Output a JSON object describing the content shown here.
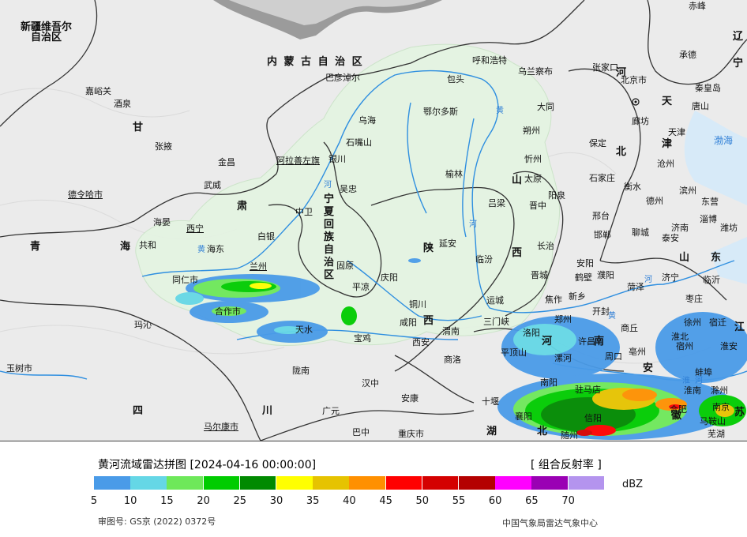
{
  "map": {
    "regions": [
      {
        "label": "新疆维吾尔\n自治区",
        "style": "prov"
      },
      {
        "label": "内 蒙 古 自 治 区",
        "style": "big"
      },
      {
        "label": "甘",
        "style": "big"
      },
      {
        "label": "肃",
        "style": "big"
      },
      {
        "label": "青",
        "style": "big"
      },
      {
        "label": "海",
        "style": "big"
      },
      {
        "label": "宁",
        "style": "big"
      },
      {
        "label": "夏",
        "style": "big"
      },
      {
        "label": "回",
        "style": "big"
      },
      {
        "label": "族",
        "style": "big"
      },
      {
        "label": "自",
        "style": "big"
      },
      {
        "label": "治",
        "style": "big"
      },
      {
        "label": "区",
        "style": "big"
      },
      {
        "label": "陕",
        "style": "big"
      },
      {
        "label": "西",
        "style": "big"
      },
      {
        "label": "山",
        "style": "big"
      },
      {
        "label": "西",
        "style": "big"
      },
      {
        "label": "河",
        "style": "big"
      },
      {
        "label": "北",
        "style": "big"
      },
      {
        "label": "河",
        "style": "big"
      },
      {
        "label": "南",
        "style": "big"
      },
      {
        "label": "山",
        "style": "big"
      },
      {
        "label": "东",
        "style": "big"
      },
      {
        "label": "四",
        "style": "big"
      },
      {
        "label": "川",
        "style": "big"
      },
      {
        "label": "湖",
        "style": "big"
      },
      {
        "label": "北",
        "style": "big"
      },
      {
        "label": "安",
        "style": "big"
      },
      {
        "label": "徽",
        "style": "big"
      },
      {
        "label": "江",
        "style": "big"
      },
      {
        "label": "苏",
        "style": "big"
      },
      {
        "label": "天",
        "style": "big"
      },
      {
        "label": "津",
        "style": "big"
      },
      {
        "label": "宁",
        "style": "big"
      },
      {
        "label": "辽",
        "style": "big"
      }
    ],
    "cities": [
      "嘉峪关",
      "酒泉",
      "张掖",
      "金昌",
      "武威",
      "德令哈市",
      "海晏",
      "西宁",
      "共和",
      "海东",
      "兰州",
      "白银",
      "同仁市",
      "合作市",
      "玛沁",
      "玉树市",
      "陇南",
      "天水",
      "巴彦淖尔",
      "包头",
      "呼和浩特",
      "乌兰察布",
      "乌海",
      "石嘴山",
      "阿拉善左旗",
      "银川",
      "吴忠",
      "中卫",
      "固原",
      "平凉",
      "庆阳",
      "鄂尔多斯",
      "榆林",
      "延安",
      "铜川",
      "咸阳",
      "西安",
      "渭南",
      "宝鸡",
      "商洛",
      "汉中",
      "安康",
      "广元",
      "巴中",
      "马尔康市",
      "重庆市",
      "大同",
      "朔州",
      "忻州",
      "太原",
      "阳泉",
      "吕梁",
      "晋中",
      "长治",
      "临汾",
      "晋城",
      "运城",
      "三门峡",
      "洛阳",
      "焦作",
      "新乡",
      "郑州",
      "开封",
      "平顶山",
      "漯河",
      "南阳",
      "驻马店",
      "信阳",
      "周口",
      "许昌",
      "商丘",
      "亳州",
      "十堰",
      "襄阳",
      "随州",
      "张家口",
      "承德",
      "北京市",
      "廊坊",
      "天津",
      "秦皇岛",
      "唐山",
      "保定",
      "石家庄",
      "沧州",
      "衡水",
      "邢台",
      "邯郸",
      "濮阳",
      "安阳",
      "鹤壁",
      "聊城",
      "德州",
      "济南",
      "泰安",
      "菏泽",
      "济宁",
      "枣庄",
      "淄博",
      "潍坊",
      "东营",
      "滨州",
      "临沂",
      "徐州",
      "宿迁",
      "淮北",
      "宿州",
      "淮安",
      "蚌埠",
      "淮南",
      "滁州",
      "南京",
      "合肥",
      "马鞍山",
      "芜湖",
      "赤峰"
    ],
    "sea_label": "渤海",
    "rivers": [
      "黄",
      "河",
      "黄",
      "河",
      "黄",
      "河",
      "淮",
      "河"
    ]
  },
  "legend": {
    "title": "黄河流域雷达拼图 [2024-04-16 00:00:00]",
    "product": "[ 组合反射率 ]",
    "unit": "dBZ",
    "ticks": [
      "5",
      "10",
      "15",
      "20",
      "25",
      "30",
      "35",
      "40",
      "45",
      "50",
      "55",
      "60",
      "65",
      "70"
    ],
    "colors": [
      "#4a9be8",
      "#65d7e6",
      "#6ee85a",
      "#00cc00",
      "#008a00",
      "#ffff00",
      "#e6c300",
      "#ff9000",
      "#ff0000",
      "#d40000",
      "#b40000",
      "#ff00ff",
      "#9a00b4",
      "#b494ee"
    ],
    "review_number": "审图号: GS京 (2022) 0372号",
    "organization": "中国气象局雷达气象中心"
  }
}
